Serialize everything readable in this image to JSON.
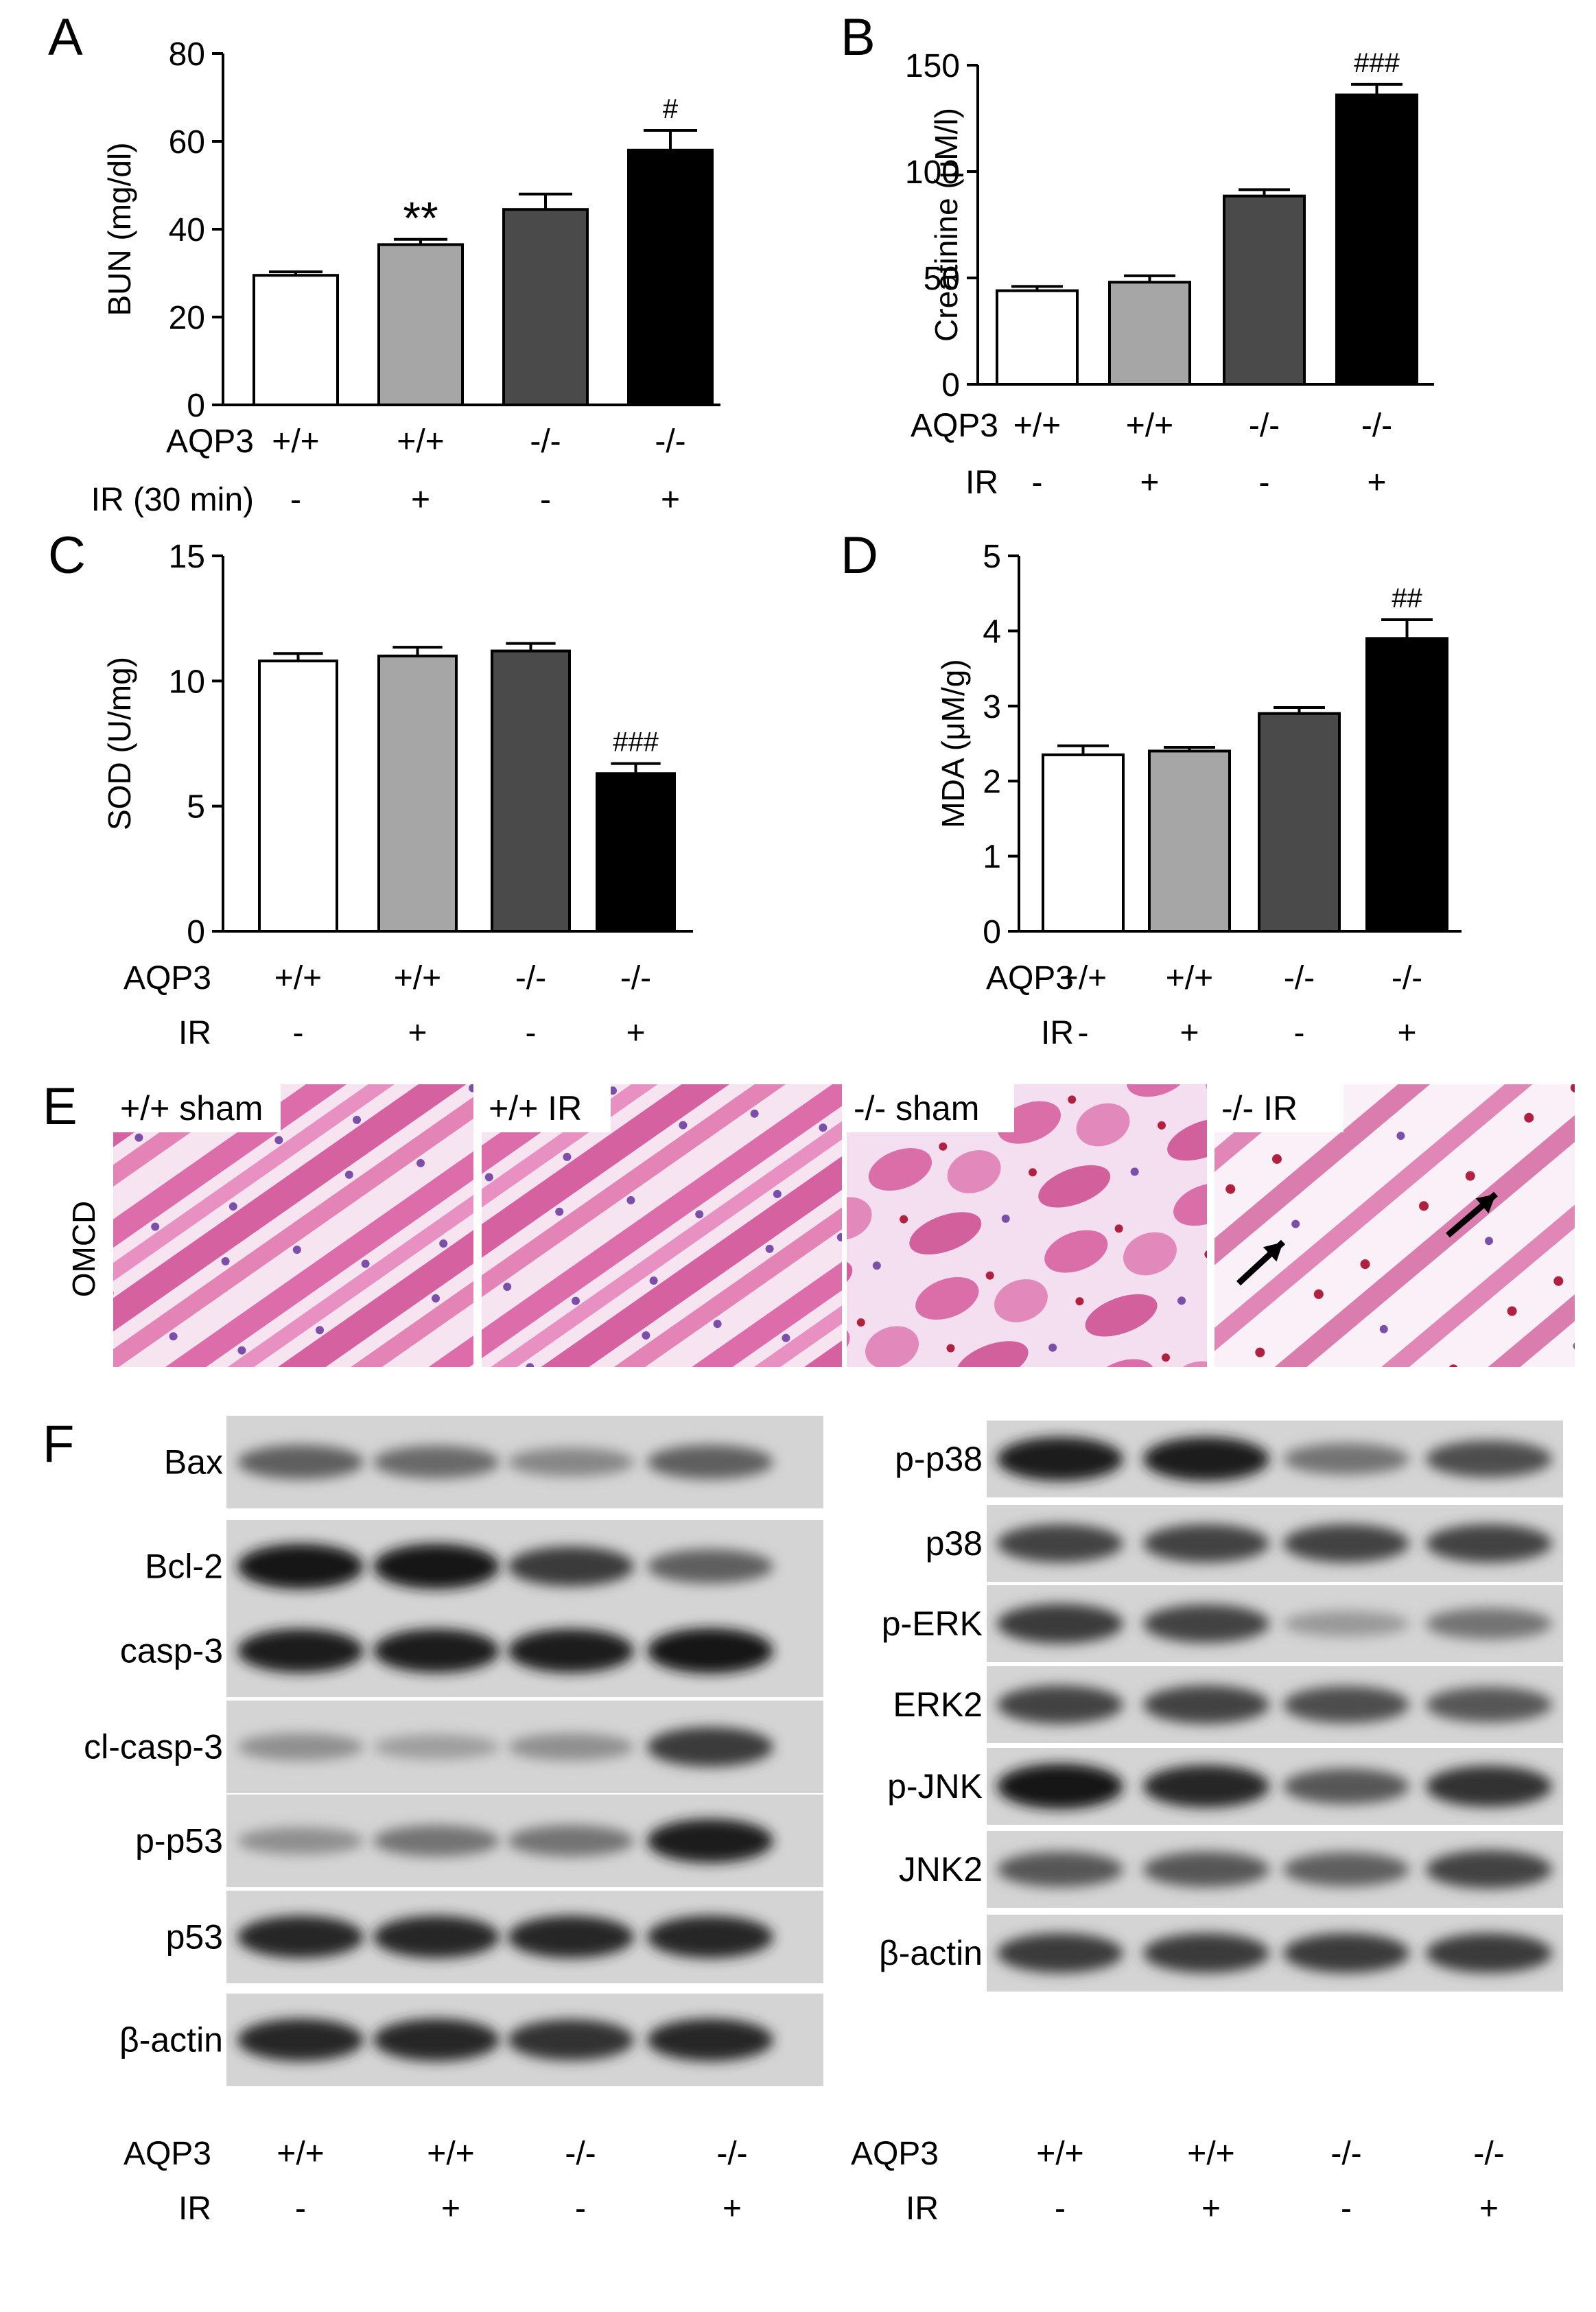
{
  "chart_data": [
    {
      "panel": "A",
      "type": "bar",
      "categories": [
        "+/+ -",
        "+/+ +",
        "-/- -",
        "-/- +"
      ],
      "values": [
        29.5,
        36.5,
        44.5,
        58
      ],
      "errors": [
        0.8,
        1.2,
        3.5,
        4.5
      ],
      "annotations": [
        "",
        "**",
        "",
        "#"
      ],
      "ylabel": "BUN (mg/dl)",
      "ylim": [
        0,
        80
      ],
      "yticks": [
        0,
        20,
        40,
        60,
        80
      ],
      "row_labels": [
        "AQP3",
        "IR (30 min)"
      ],
      "rows": [
        [
          "+/+",
          "+/+",
          "-/-",
          "-/-"
        ],
        [
          "-",
          "+",
          "-",
          "+"
        ]
      ],
      "colors": [
        "#ffffff",
        "#a6a6a6",
        "#4a4a4a",
        "#000000"
      ]
    },
    {
      "panel": "B",
      "type": "bar",
      "categories": [
        "+/+ -",
        "+/+ +",
        "-/- -",
        "-/- +"
      ],
      "values": [
        44,
        48,
        88.5,
        136
      ],
      "errors": [
        2,
        3,
        3,
        5
      ],
      "annotations": [
        "",
        "",
        "",
        "###"
      ],
      "ylabel": "Creatinine (μM/l)",
      "ylim": [
        0,
        150
      ],
      "yticks": [
        0,
        50,
        100,
        150
      ],
      "row_labels": [
        "AQP3",
        "IR"
      ],
      "rows": [
        [
          "+/+",
          "+/+",
          "-/-",
          "-/-"
        ],
        [
          "-",
          "+",
          "-",
          "+"
        ]
      ],
      "colors": [
        "#ffffff",
        "#a6a6a6",
        "#4a4a4a",
        "#000000"
      ]
    },
    {
      "panel": "C",
      "type": "bar",
      "categories": [
        "+/+ -",
        "+/+ +",
        "-/- -",
        "-/- +"
      ],
      "values": [
        10.8,
        11.0,
        11.2,
        6.3
      ],
      "errors": [
        0.3,
        0.35,
        0.3,
        0.4
      ],
      "annotations": [
        "",
        "",
        "",
        "###"
      ],
      "ylabel": "SOD (U/mg)",
      "ylim": [
        0,
        15
      ],
      "yticks": [
        0,
        5,
        10,
        15
      ],
      "row_labels": [
        "AQP3",
        "IR"
      ],
      "rows": [
        [
          "+/+",
          "+/+",
          "-/-",
          "-/-"
        ],
        [
          "-",
          "+",
          "-",
          "+"
        ]
      ],
      "colors": [
        "#ffffff",
        "#a6a6a6",
        "#4a4a4a",
        "#000000"
      ]
    },
    {
      "panel": "D",
      "type": "bar",
      "categories": [
        "+/+ -",
        "+/+ +",
        "-/- -",
        "-/- +"
      ],
      "values": [
        2.35,
        2.4,
        2.9,
        3.9
      ],
      "errors": [
        0.12,
        0.05,
        0.08,
        0.25
      ],
      "annotations": [
        "",
        "",
        "",
        "##"
      ],
      "ylabel": "MDA (μM/g)",
      "ylim": [
        0,
        5
      ],
      "yticks": [
        0,
        1,
        2,
        3,
        4,
        5
      ],
      "row_labels": [
        "AQP3",
        "IR"
      ],
      "rows": [
        [
          "+/+",
          "+/+",
          "-/-",
          "-/-"
        ],
        [
          "-",
          "+",
          "-",
          "+"
        ]
      ],
      "colors": [
        "#ffffff",
        "#a6a6a6",
        "#4a4a4a",
        "#000000"
      ]
    }
  ],
  "panel_e": {
    "letter": "E",
    "side_label": "OMCD",
    "images": [
      "+/+ sham",
      "+/+ IR",
      "-/- sham",
      "-/- IR"
    ]
  },
  "panel_f": {
    "letter": "F",
    "left_blots": [
      {
        "label": "Bax",
        "intensity": [
          0.55,
          0.5,
          0.35,
          0.55
        ]
      },
      {
        "label": "Bcl-2",
        "intensity": [
          0.95,
          0.95,
          0.75,
          0.55
        ]
      },
      {
        "label": "casp-3",
        "intensity": [
          0.9,
          0.9,
          0.9,
          0.95
        ]
      },
      {
        "label": "cl-casp-3",
        "intensity": [
          0.3,
          0.22,
          0.3,
          0.75
        ]
      },
      {
        "label": "p-p53",
        "intensity": [
          0.3,
          0.45,
          0.45,
          0.9
        ]
      },
      {
        "label": "p53",
        "intensity": [
          0.85,
          0.85,
          0.85,
          0.85
        ]
      },
      {
        "label": "β-actin",
        "intensity": [
          0.85,
          0.85,
          0.8,
          0.85
        ]
      }
    ],
    "right_blots": [
      {
        "label": "p-p38",
        "intensity": [
          0.9,
          0.9,
          0.45,
          0.65
        ]
      },
      {
        "label": "p38",
        "intensity": [
          0.7,
          0.7,
          0.7,
          0.7
        ]
      },
      {
        "label": "p-ERK",
        "intensity": [
          0.75,
          0.7,
          0.25,
          0.45
        ]
      },
      {
        "label": "ERK2",
        "intensity": [
          0.7,
          0.7,
          0.65,
          0.6
        ]
      },
      {
        "label": "p-JNK",
        "intensity": [
          0.95,
          0.85,
          0.6,
          0.8
        ]
      },
      {
        "label": "JNK2",
        "intensity": [
          0.6,
          0.6,
          0.55,
          0.7
        ]
      },
      {
        "label": "β-actin",
        "intensity": [
          0.75,
          0.75,
          0.75,
          0.75
        ]
      }
    ],
    "row_labels": [
      "AQP3",
      "IR"
    ],
    "rows": [
      [
        "+/+",
        "+/+",
        "-/-",
        "-/-"
      ],
      [
        "-",
        "+",
        "-",
        "+"
      ]
    ]
  }
}
